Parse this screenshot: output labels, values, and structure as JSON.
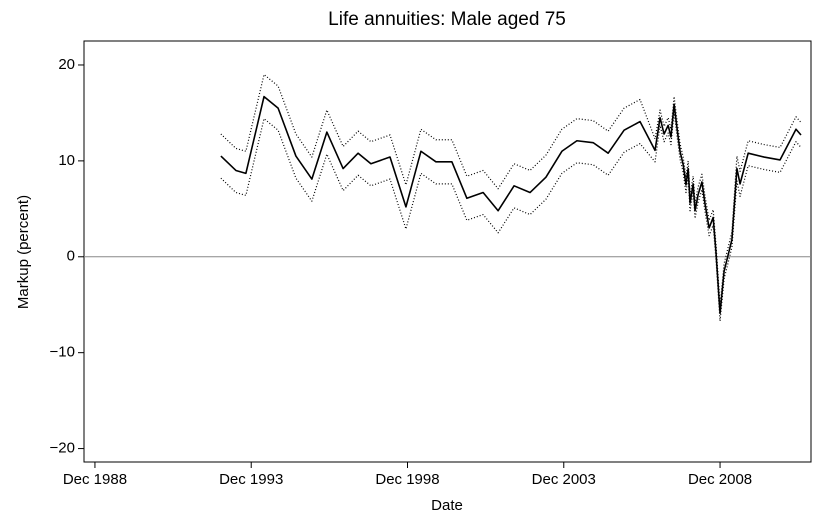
{
  "chart_data": {
    "type": "line",
    "title": "Life annuities: Male aged 75",
    "x_label": "Date",
    "y_label": "Markup (percent)",
    "xlim": [
      1988.57,
      2011.83
    ],
    "xticks": [
      {
        "value": 1988.92,
        "label": "Dec 1988"
      },
      {
        "value": 1993.92,
        "label": "Dec 1993"
      },
      {
        "value": 1998.92,
        "label": "Dec 1998"
      },
      {
        "value": 2003.92,
        "label": "Dec 2003"
      },
      {
        "value": 2008.92,
        "label": "Dec 2008"
      }
    ],
    "ylim": [
      -21.4,
      22.5
    ],
    "yticks": [
      {
        "value": -20,
        "label": "−20"
      },
      {
        "value": -10,
        "label": "−10"
      },
      0,
      10,
      20
    ],
    "reference_line": 0,
    "x": [
      1992.95,
      1993.43,
      1993.75,
      1994.33,
      1994.78,
      1995.35,
      1995.86,
      1996.34,
      1996.86,
      1997.34,
      1997.75,
      1998.36,
      1998.87,
      1999.35,
      1999.83,
      2000.34,
      2000.82,
      2001.34,
      2001.82,
      2002.33,
      2002.84,
      2003.35,
      2003.86,
      2004.34,
      2004.86,
      2005.34,
      2005.85,
      2006.36,
      2006.84,
      2007.0,
      2007.13,
      2007.26,
      2007.35,
      2007.45,
      2007.54,
      2007.64,
      2007.74,
      2007.83,
      2007.9,
      2007.96,
      2008.06,
      2008.12,
      2008.22,
      2008.34,
      2008.44,
      2008.57,
      2008.7,
      2008.79,
      2008.92,
      2009.05,
      2009.18,
      2009.3,
      2009.46,
      2009.56,
      2009.82,
      2010.33,
      2010.84,
      2011.35,
      2011.51
    ],
    "series": [
      {
        "color": "#000000",
        "style": "solid",
        "values": [
          10.5,
          9,
          8.7,
          16.7,
          15.5,
          10.5,
          8.1,
          13,
          9.2,
          10.8,
          9.7,
          10.4,
          5.2,
          11,
          9.9,
          9.9,
          6.1,
          6.7,
          4.8,
          7.4,
          6.7,
          8.3,
          11,
          12.1,
          11.9,
          10.8,
          13.2,
          14.1,
          11.1,
          14.5,
          12.8,
          13.7,
          12.5,
          15.9,
          13.5,
          11,
          9.6,
          7.5,
          9.2,
          5.6,
          7.6,
          4.8,
          6.5,
          7.8,
          5.5,
          3,
          4.1,
          0.5,
          -5.9,
          -1.5,
          0.2,
          1.8,
          9.2,
          7.6,
          10.8,
          10.4,
          10.1,
          13.3,
          12.7
        ]
      },
      {
        "color": "#000000",
        "style": "dotted",
        "values": [
          12.8,
          11.3,
          11,
          19,
          17.8,
          12.8,
          10.4,
          15.3,
          11.5,
          13.1,
          12,
          12.7,
          7.5,
          13.3,
          12.2,
          12.2,
          8.4,
          9,
          7.1,
          9.7,
          9,
          10.6,
          13.3,
          14.4,
          14.2,
          13.1,
          15.5,
          16.4,
          12.3,
          15.3,
          13.6,
          14.5,
          13.3,
          16.7,
          14.3,
          11.8,
          10.4,
          8.3,
          10,
          6.4,
          8.4,
          5.6,
          7.3,
          8.6,
          6.3,
          3.8,
          4.9,
          1.3,
          -5.1,
          -0.7,
          1,
          2.6,
          10.5,
          8.9,
          12.1,
          11.7,
          11.4,
          14.6,
          14
        ]
      },
      {
        "color": "#000000",
        "style": "dotted",
        "values": [
          8.2,
          6.7,
          6.4,
          14.4,
          13.2,
          8.2,
          5.8,
          10.7,
          6.9,
          8.5,
          7.4,
          8.1,
          2.9,
          8.7,
          7.6,
          7.6,
          3.8,
          4.4,
          2.5,
          5.1,
          4.4,
          6,
          8.7,
          9.8,
          9.6,
          8.5,
          10.9,
          11.8,
          9.9,
          13.7,
          12,
          12.9,
          11.7,
          15.1,
          12.7,
          10.2,
          8.8,
          6.7,
          8.4,
          4.8,
          6.8,
          4,
          5.7,
          7,
          4.7,
          2.2,
          3.3,
          -0.3,
          -6.7,
          -2.3,
          -0.6,
          1,
          7.9,
          6.3,
          9.5,
          9.1,
          8.8,
          12,
          11.4
        ]
      }
    ]
  }
}
